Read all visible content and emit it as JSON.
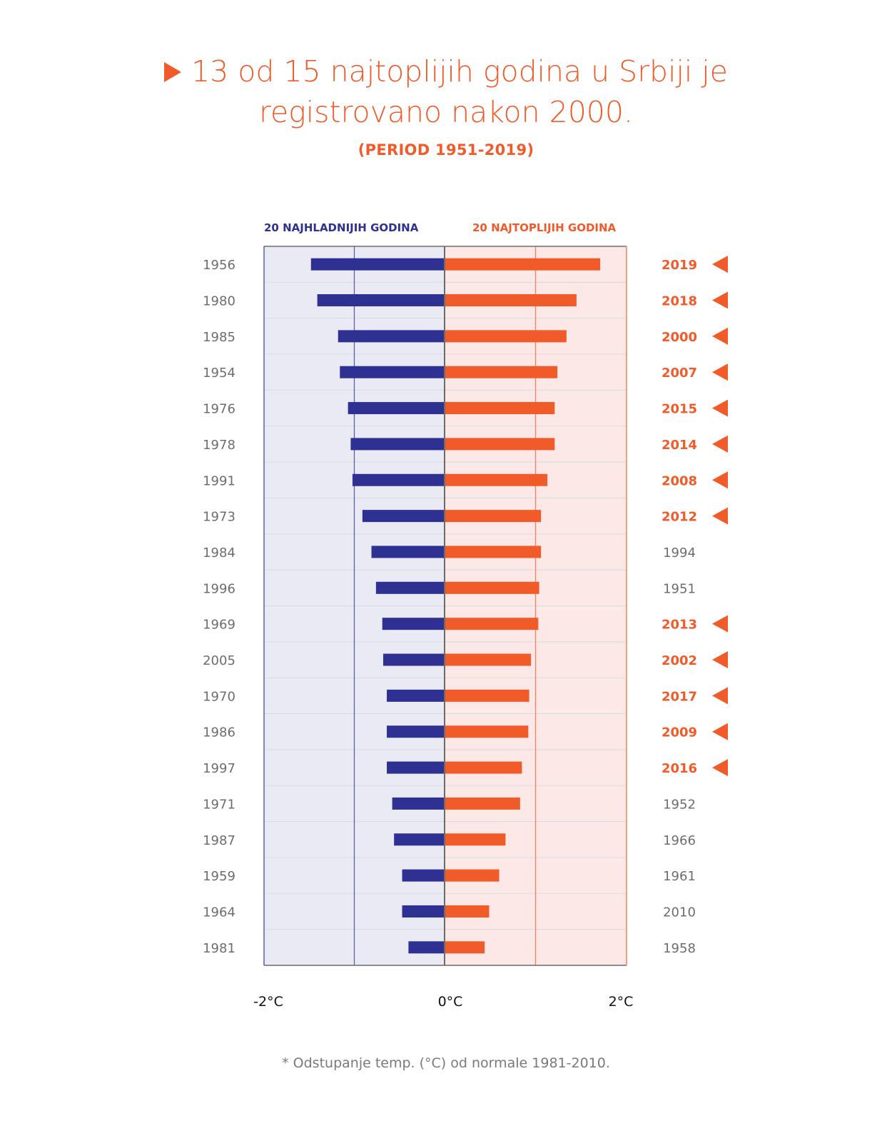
{
  "title": {
    "line1": "13 od 15 najtoplijih godina u Srbiji je",
    "line2": "registrovano nakon 2000.",
    "subtitle": "(PERIOD 1951-2019)",
    "icon": "play-triangle-icon"
  },
  "legend": {
    "cold": "20 NAJHLADNIJIH GODINA",
    "warm": "20 NAJTOPLIJIH GODINA"
  },
  "footnote": "* Odstupanje temp. (°C) od normale 1981-2010.",
  "colors": {
    "accent": "#f15a29",
    "cold": "#2e3192",
    "cold_panel": "#eaeaf4",
    "warm_panel": "#fde8e8",
    "label_gray": "#6d6d6d"
  },
  "chart_data": {
    "type": "bar",
    "orientation": "horizontal-diverging",
    "x_unit": "°C",
    "xlim": [
      -2,
      2
    ],
    "x_ticks": [
      -2,
      0,
      2
    ],
    "x_tick_labels": [
      "-2°C",
      "0°C",
      "2°C"
    ],
    "gridlines_x": [
      -1,
      1
    ],
    "series": [
      {
        "name": "20 NAJHLADNIJIH GODINA",
        "categories": [
          "1956",
          "1980",
          "1985",
          "1954",
          "1976",
          "1978",
          "1991",
          "1973",
          "1984",
          "1996",
          "1969",
          "2005",
          "1970",
          "1986",
          "1997",
          "1971",
          "1987",
          "1959",
          "1964",
          "1981"
        ],
        "values": [
          -1.48,
          -1.41,
          -1.18,
          -1.16,
          -1.07,
          -1.04,
          -1.02,
          -0.91,
          -0.81,
          -0.76,
          -0.69,
          -0.68,
          -0.64,
          -0.64,
          -0.64,
          -0.58,
          -0.56,
          -0.47,
          -0.47,
          -0.4
        ]
      },
      {
        "name": "20 NAJTOPLIJIH GODINA",
        "categories": [
          "2019",
          "2018",
          "2000",
          "2007",
          "2015",
          "2014",
          "2008",
          "2012",
          "1994",
          "1951",
          "2013",
          "2002",
          "2017",
          "2009",
          "2016",
          "1952",
          "1966",
          "1961",
          "2010",
          "1958"
        ],
        "values": [
          1.71,
          1.45,
          1.34,
          1.24,
          1.21,
          1.21,
          1.13,
          1.06,
          1.06,
          1.04,
          1.03,
          0.95,
          0.93,
          0.92,
          0.85,
          0.83,
          0.67,
          0.6,
          0.49,
          0.44
        ],
        "highlighted": [
          true,
          true,
          true,
          true,
          true,
          true,
          true,
          true,
          false,
          false,
          true,
          true,
          true,
          true,
          true,
          false,
          false,
          false,
          false,
          false
        ]
      }
    ]
  }
}
